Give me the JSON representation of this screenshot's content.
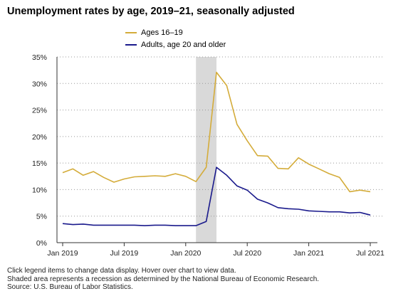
{
  "title": "Unemployment rates by age, 2019–21, seasonally adjusted",
  "legend": [
    {
      "label": "Ages 16–19",
      "color": "#d4ac3a"
    },
    {
      "label": "Adults, age 20 and older",
      "color": "#1a1a8c"
    }
  ],
  "notes": [
    "Click legend items to change data display. Hover over chart to view data.",
    "Shaded area represents a recession as determined by the National Bureau of Economic Research.",
    "Source: U.S. Bureau of Labor Statistics."
  ],
  "chart_data": {
    "type": "line",
    "title": "Unemployment rates by age, 2019–21, seasonally adjusted",
    "x": [
      "Jan 2019",
      "Feb 2019",
      "Mar 2019",
      "Apr 2019",
      "May 2019",
      "Jun 2019",
      "Jul 2019",
      "Aug 2019",
      "Sep 2019",
      "Oct 2019",
      "Nov 2019",
      "Dec 2019",
      "Jan 2020",
      "Feb 2020",
      "Mar 2020",
      "Apr 2020",
      "May 2020",
      "Jun 2020",
      "Jul 2020",
      "Aug 2020",
      "Sep 2020",
      "Oct 2020",
      "Nov 2020",
      "Dec 2020",
      "Jan 2021",
      "Feb 2021",
      "Mar 2021",
      "Apr 2021",
      "May 2021",
      "Jun 2021",
      "Jul 2021"
    ],
    "x_tick_labels": [
      "Jan 2019",
      "Jul 2019",
      "Jan 2020",
      "Jul 2020",
      "Jan 2021",
      "Jul 2021"
    ],
    "x_tick_indices": [
      0,
      6,
      12,
      18,
      24,
      30
    ],
    "y_ticks": [
      0,
      5,
      10,
      15,
      20,
      25,
      30,
      35
    ],
    "y_tick_format": "%",
    "ylim": [
      0,
      35
    ],
    "grid": "horizontal dotted",
    "legend_position": "top",
    "recession_shading": {
      "start": "Feb 2020",
      "end": "Apr 2020",
      "color": "#d9d9d9"
    },
    "series": [
      {
        "name": "Ages 16–19",
        "color": "#d4ac3a",
        "values": [
          13.2,
          13.9,
          12.7,
          13.4,
          12.3,
          11.4,
          12.0,
          12.4,
          12.5,
          12.6,
          12.5,
          13.0,
          12.5,
          11.5,
          14.2,
          32.1,
          29.6,
          22.3,
          19.2,
          16.4,
          16.3,
          14.0,
          13.9,
          16.0,
          14.8,
          13.9,
          13.0,
          12.3,
          9.6,
          9.9,
          9.6
        ]
      },
      {
        "name": "Adults, age 20 and older",
        "color": "#1a1a8c",
        "values": [
          3.6,
          3.4,
          3.5,
          3.3,
          3.3,
          3.3,
          3.3,
          3.3,
          3.2,
          3.3,
          3.3,
          3.2,
          3.2,
          3.2,
          4.0,
          14.2,
          12.7,
          10.7,
          9.9,
          8.2,
          7.5,
          6.6,
          6.4,
          6.3,
          6.0,
          5.9,
          5.8,
          5.8,
          5.6,
          5.7,
          5.2
        ]
      }
    ]
  }
}
